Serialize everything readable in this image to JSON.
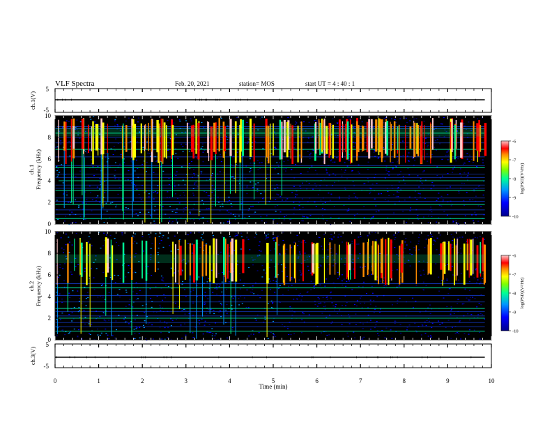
{
  "header": {
    "title": "VLF Spectra",
    "date": "Feb. 20, 2021",
    "station": "station= MOS",
    "start": "start  UT =  4 : 40 : 1"
  },
  "chart_data": [
    {
      "type": "line",
      "panel": "ch1-waveform",
      "ylabel": "ch.1(V)",
      "ylim": [
        -5,
        5
      ],
      "y_ticks": [
        "5",
        "-5"
      ],
      "series": [
        {
          "values": [
            {
              "x": 0,
              "y": 0
            },
            {
              "x": 9.85,
              "y": 0
            }
          ]
        }
      ]
    },
    {
      "type": "heatmap",
      "panel": "ch1-spectrogram",
      "ylabel": "ch.1\nFrequency (kHz)",
      "ylabel_line1": "ch.1",
      "ylabel_line2": "Frequency (kHz)",
      "xlim": [
        0,
        10
      ],
      "ylim": [
        0,
        10
      ],
      "y_ticks": [
        "10",
        "8",
        "6",
        "4",
        "2",
        "0"
      ],
      "colorbar": {
        "label": "log(PSD)(V²/Hz)",
        "range": [
          -10,
          -6
        ],
        "ticks": [
          "-6",
          "-7",
          "-8",
          "-9",
          "-10"
        ]
      },
      "band": {
        "low_khz": 5.5,
        "high_khz": 9.8,
        "peak_khz": 8.5
      },
      "dense_until_min": 5.2,
      "lines_khz": [
        0.5,
        0.9,
        1.3,
        1.8,
        2.1,
        2.4,
        3.1,
        3.3,
        3.6,
        4.0,
        4.3,
        4.6,
        5.2,
        5.4,
        6.2,
        6.9,
        7.5,
        8.0,
        8.4,
        8.8,
        9.0
      ],
      "data_extent_min": 9.85
    },
    {
      "type": "heatmap",
      "panel": "ch2-spectrogram",
      "ylabel": "ch.2\nFrequency (kHz)",
      "ylabel_line1": "ch.2",
      "ylabel_line2": "Frequency (kHz)",
      "xlim": [
        0,
        10
      ],
      "ylim": [
        0,
        10
      ],
      "y_ticks": [
        "10",
        "8",
        "6",
        "4",
        "2",
        "0"
      ],
      "colorbar": {
        "label": "log(PSD)(V²/Hz)",
        "range": [
          -10,
          -6
        ],
        "ticks": [
          "-6",
          "-7",
          "-8",
          "-9",
          "-10"
        ]
      },
      "band": {
        "low_khz": 5.0,
        "high_khz": 9.5,
        "peak_khz": 7.5
      },
      "dense_until_min": 5.2,
      "lines_khz": [
        0.8,
        1.2,
        1.6,
        2.0,
        2.2,
        2.6,
        2.9,
        3.5,
        4.1,
        4.8,
        5.2
      ],
      "data_extent_min": 9.85
    },
    {
      "type": "line",
      "panel": "ch3-waveform",
      "ylabel": "ch.3(V)",
      "ylim": [
        -5,
        5
      ],
      "y_ticks": [
        "5",
        "-5"
      ],
      "series": [
        {
          "values": [
            {
              "x": 0,
              "y": 0
            },
            {
              "x": 9.85,
              "y": 0
            }
          ]
        }
      ]
    }
  ],
  "xaxis": {
    "label": "Time  (min)",
    "range": [
      0,
      10
    ],
    "ticks": [
      "0",
      "1",
      "2",
      "3",
      "4",
      "5",
      "6",
      "7",
      "8",
      "9",
      "10"
    ]
  },
  "colors": {
    "background": "#000000",
    "colormap": [
      "#00008c",
      "#0000ff",
      "#0096ff",
      "#00ff96",
      "#ffff00",
      "#ff8c00",
      "#ff0000",
      "#ffc8c8"
    ]
  }
}
